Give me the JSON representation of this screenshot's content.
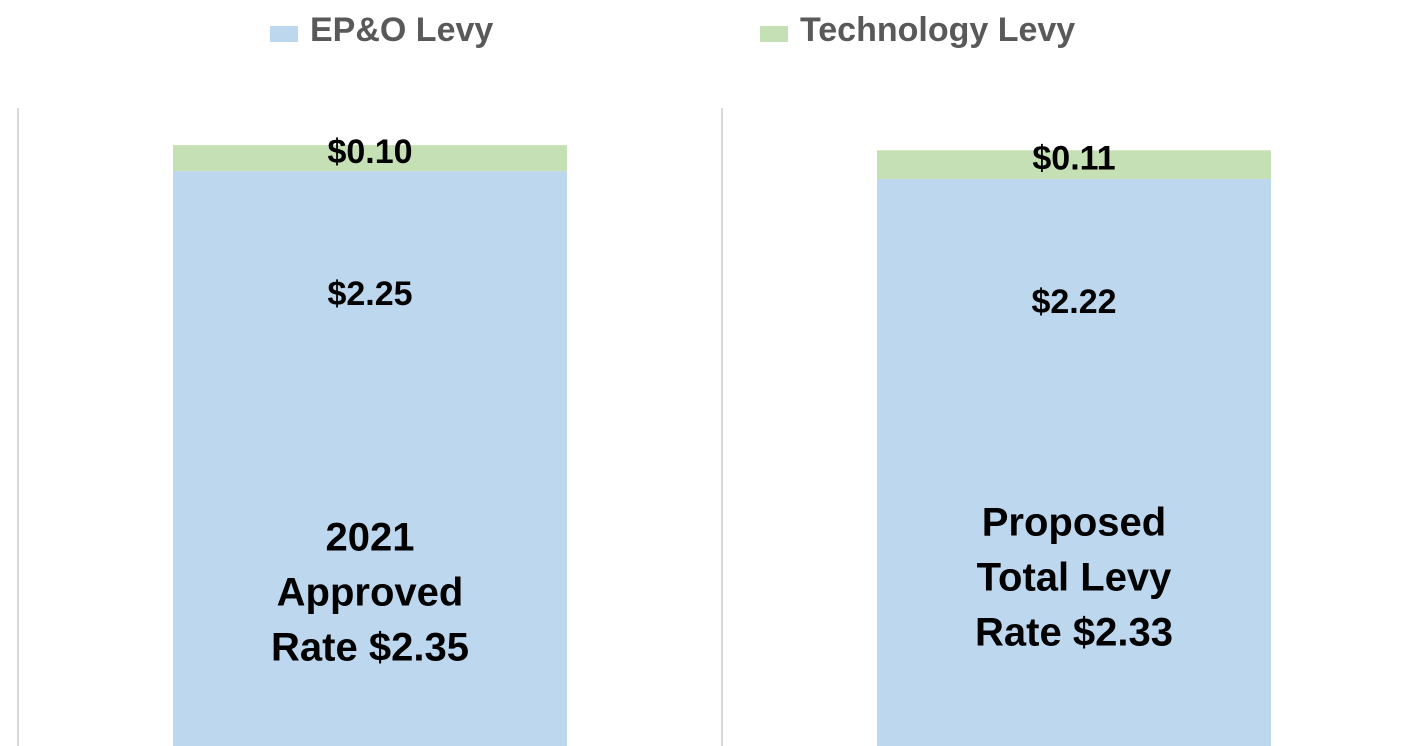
{
  "chart_data": {
    "type": "stacked_bar",
    "categories": [
      null,
      null
    ],
    "series": [
      {
        "name": "EP&O Levy",
        "color": "#bdd7ee",
        "values": [
          2.25,
          2.22
        ],
        "value_labels": [
          "$2.25",
          "$2.22"
        ]
      },
      {
        "name": "Technology Levy",
        "color": "#c5e0b4",
        "values": [
          0.1,
          0.11
        ],
        "value_labels": [
          "$0.10",
          "$0.11"
        ]
      }
    ],
    "annotations": [
      [
        "2021",
        "Approved",
        "Rate $2.35"
      ],
      [
        "Proposed",
        "Total Levy",
        "Rate $2.33"
      ]
    ],
    "ylim": [
      0,
      2.6
    ]
  }
}
